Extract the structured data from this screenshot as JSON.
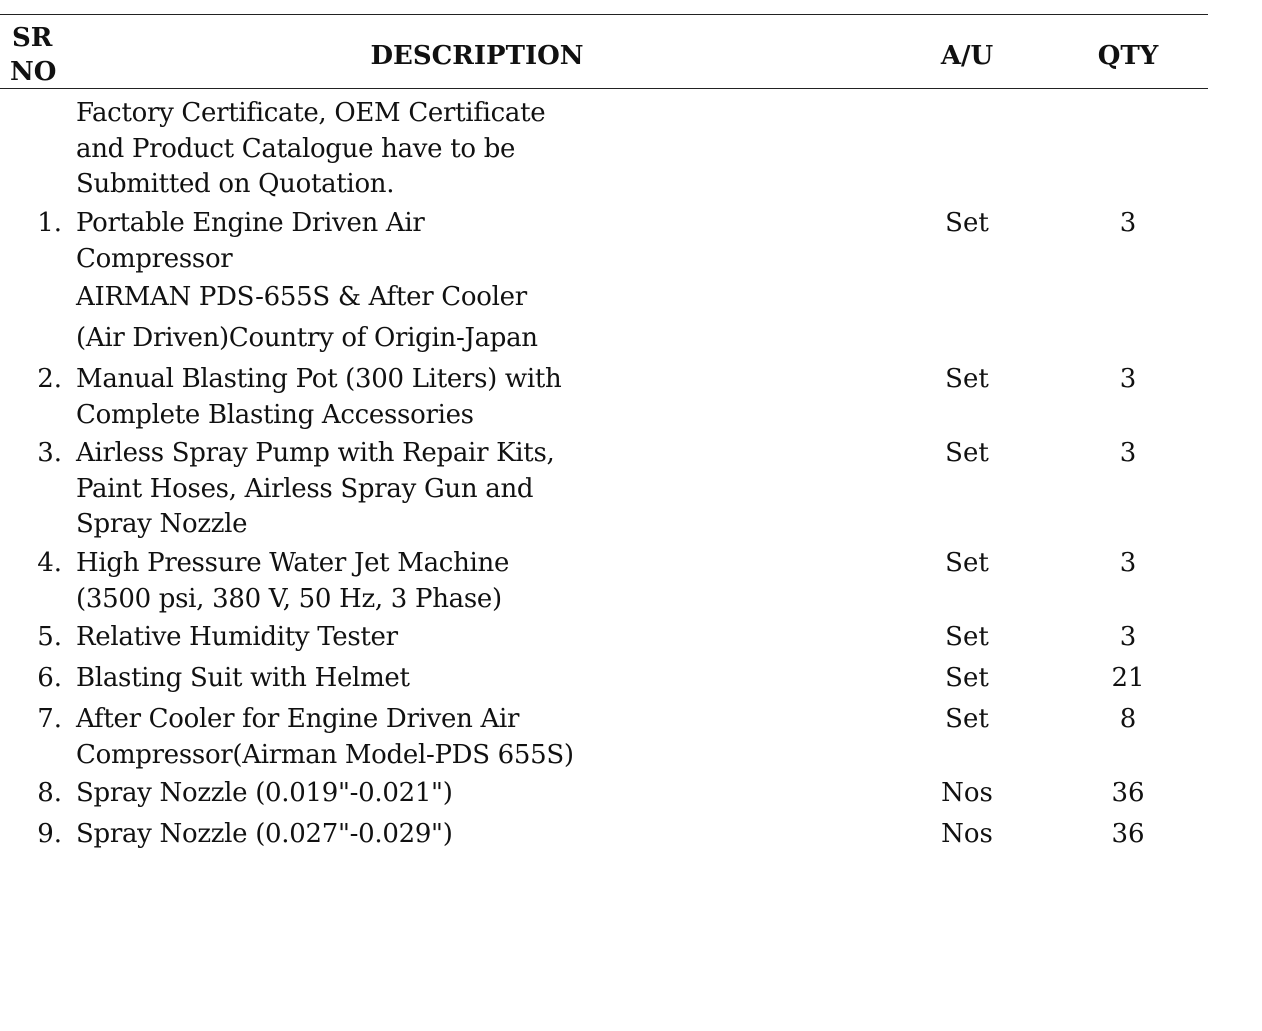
{
  "header": {
    "sr_no": [
      "SR",
      "NO"
    ],
    "description": "DESCRIPTION",
    "unit": "A/U",
    "qty": "QTY"
  },
  "note": [
    "Factory Certificate, OEM Certificate",
    "and Product Catalogue have to be",
    "Submitted on Quotation."
  ],
  "rows": [
    {
      "no": "1.",
      "lines": [
        "Portable Engine Driven Air",
        "Compressor",
        "AIRMAN PDS-655S & After Cooler",
        "(Air Driven)Country of Origin-Japan"
      ],
      "unit": "Set",
      "qty": "3"
    },
    {
      "no": "2.",
      "lines": [
        "Manual Blasting Pot (300 Liters) with",
        "Complete Blasting Accessories"
      ],
      "unit": "Set",
      "qty": "3"
    },
    {
      "no": "3.",
      "lines": [
        "Airless Spray Pump with Repair Kits,",
        "Paint Hoses, Airless Spray Gun and",
        "Spray Nozzle"
      ],
      "unit": "Set",
      "qty": "3"
    },
    {
      "no": "4.",
      "lines": [
        "High Pressure Water Jet Machine",
        "(3500 psi, 380 V, 50 Hz, 3 Phase)"
      ],
      "unit": "Set",
      "qty": "3"
    },
    {
      "no": "5.",
      "lines": [
        "Relative Humidity Tester"
      ],
      "unit": "Set",
      "qty": "3"
    },
    {
      "no": "6.",
      "lines": [
        "Blasting Suit with Helmet"
      ],
      "unit": "Set",
      "qty": "21"
    },
    {
      "no": "7.",
      "lines": [
        "After Cooler for Engine Driven Air",
        "Compressor(Airman Model-PDS 655S)"
      ],
      "unit": "Set",
      "qty": "8"
    },
    {
      "no": "8.",
      "lines": [
        "Spray Nozzle (0.019\"-0.021\")"
      ],
      "unit": "Nos",
      "qty": "36"
    },
    {
      "no": "9.",
      "lines": [
        "Spray Nozzle (0.027\"-0.029\")"
      ],
      "unit": "Nos",
      "qty": "36"
    }
  ]
}
